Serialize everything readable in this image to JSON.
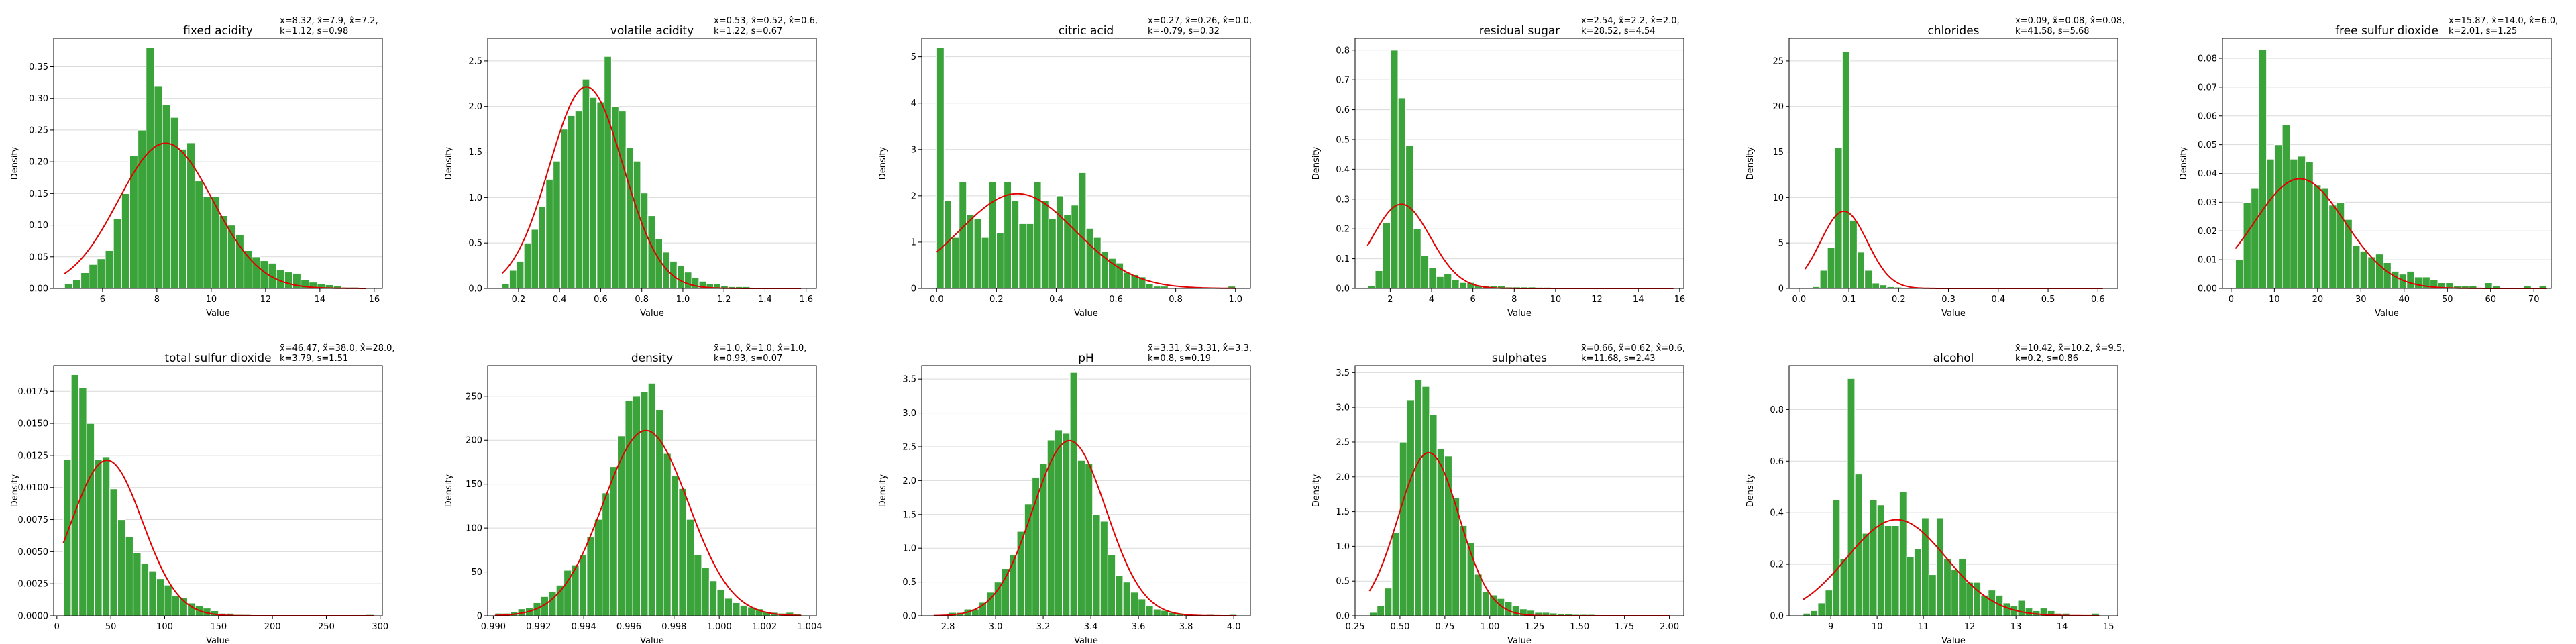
{
  "chart_data": [
    {
      "type": "bar",
      "title": "fixed acidity",
      "stats_line1": "x̄=8.32, x̃=7.9, x̂=7.2,",
      "stats_line2": "k=1.12, s=0.98",
      "xlabel": "Value",
      "ylabel": "Density",
      "xlim": [
        4.2,
        16.3
      ],
      "ylim": [
        0,
        0.395
      ],
      "xticks": [
        6,
        8,
        10,
        12,
        14,
        16
      ],
      "xtick_labels": [
        "6",
        "8",
        "10",
        "12",
        "14",
        "16"
      ],
      "yticks": [
        0,
        0.05,
        0.1,
        0.15,
        0.2,
        0.25,
        0.3,
        0.35
      ],
      "ytick_labels": [
        "0.00",
        "0.05",
        "0.10",
        "0.15",
        "0.20",
        "0.25",
        "0.30",
        "0.35"
      ],
      "bins": {
        "start": 4.6,
        "width": 0.3
      },
      "values": [
        0.008,
        0.014,
        0.025,
        0.038,
        0.047,
        0.06,
        0.11,
        0.15,
        0.21,
        0.25,
        0.38,
        0.32,
        0.29,
        0.27,
        0.22,
        0.23,
        0.17,
        0.145,
        0.145,
        0.115,
        0.1,
        0.085,
        0.06,
        0.05,
        0.044,
        0.04,
        0.03,
        0.026,
        0.024,
        0.014,
        0.01,
        0.008,
        0.006,
        0.004,
        0.002,
        0.002,
        0.001
      ],
      "fit": {
        "mean": 8.32,
        "sd": 1.74
      }
    },
    {
      "type": "bar",
      "title": "volatile acidity",
      "stats_line1": "x̄=0.53, x̃=0.52, x̂=0.6,",
      "stats_line2": "k=1.22, s=0.67",
      "xlabel": "Value",
      "ylabel": "Density",
      "xlim": [
        0.05,
        1.65
      ],
      "ylim": [
        0,
        2.75
      ],
      "xticks": [
        0.2,
        0.4,
        0.6,
        0.8,
        1.0,
        1.2,
        1.4,
        1.6
      ],
      "xtick_labels": [
        "0.2",
        "0.4",
        "0.6",
        "0.8",
        "1.0",
        "1.2",
        "1.4",
        "1.6"
      ],
      "yticks": [
        0,
        0.5,
        1.0,
        1.5,
        2.0,
        2.5
      ],
      "ytick_labels": [
        "0.0",
        "0.5",
        "1.0",
        "1.5",
        "2.0",
        "2.5"
      ],
      "bins": {
        "start": 0.12,
        "width": 0.0355
      },
      "values": [
        0.05,
        0.2,
        0.3,
        0.5,
        0.65,
        0.9,
        1.2,
        1.4,
        1.75,
        1.9,
        1.95,
        2.3,
        2.1,
        2.05,
        2.55,
        2.0,
        1.95,
        1.55,
        1.4,
        1.05,
        0.8,
        0.55,
        0.4,
        0.3,
        0.25,
        0.18,
        0.12,
        0.08,
        0.05,
        0.05,
        0.03,
        0.02,
        0.02,
        0.02,
        0.01,
        0.0,
        0.0,
        0.01,
        0.0,
        0.0,
        0.01
      ],
      "fit": {
        "mean": 0.53,
        "sd": 0.18
      }
    },
    {
      "type": "bar",
      "title": "citric acid",
      "stats_line1": "x̄=0.27, x̃=0.26, x̂=0.0,",
      "stats_line2": "k=-0.79, s=0.32",
      "xlabel": "Value",
      "ylabel": "Density",
      "xlim": [
        -0.05,
        1.05
      ],
      "ylim": [
        0,
        5.4
      ],
      "xticks": [
        0,
        0.2,
        0.4,
        0.6,
        0.8,
        1.0
      ],
      "xtick_labels": [
        "0.0",
        "0.2",
        "0.4",
        "0.6",
        "0.8",
        "1.0"
      ],
      "yticks": [
        0,
        1,
        2,
        3,
        4,
        5
      ],
      "ytick_labels": [
        "0",
        "1",
        "2",
        "3",
        "4",
        "5"
      ],
      "bins": {
        "start": 0.0,
        "width": 0.025
      },
      "values": [
        5.2,
        1.9,
        1.1,
        2.3,
        1.6,
        1.5,
        1.1,
        2.3,
        1.2,
        2.3,
        1.9,
        1.4,
        1.4,
        2.3,
        1.9,
        1.5,
        2.0,
        1.6,
        1.8,
        2.5,
        1.3,
        1.1,
        0.8,
        0.65,
        0.55,
        0.35,
        0.3,
        0.25,
        0.1,
        0.05,
        0.05,
        0.02,
        0.01,
        0.01,
        0.0,
        0.0,
        0.0,
        0.0,
        0.0,
        0.05
      ],
      "fit": {
        "mean": 0.27,
        "sd": 0.195
      }
    },
    {
      "type": "bar",
      "title": "residual sugar",
      "stats_line1": "x̄=2.54, x̃=2.2, x̂=2.0,",
      "stats_line2": "k=28.52, s=4.54",
      "xlabel": "Value",
      "ylabel": "Density",
      "xlim": [
        0.3,
        16.2
      ],
      "ylim": [
        0,
        0.84
      ],
      "xticks": [
        2,
        4,
        6,
        8,
        10,
        12,
        14,
        16
      ],
      "xtick_labels": [
        "2",
        "4",
        "6",
        "8",
        "10",
        "12",
        "14",
        "16"
      ],
      "yticks": [
        0,
        0.1,
        0.2,
        0.3,
        0.4,
        0.5,
        0.6,
        0.7,
        0.8
      ],
      "ytick_labels": [
        "0.0",
        "0.1",
        "0.2",
        "0.3",
        "0.4",
        "0.5",
        "0.6",
        "0.7",
        "0.8"
      ],
      "bins": {
        "start": 0.9,
        "width": 0.37
      },
      "values": [
        0.01,
        0.06,
        0.22,
        0.8,
        0.64,
        0.48,
        0.2,
        0.11,
        0.07,
        0.04,
        0.05,
        0.03,
        0.02,
        0.02,
        0.01,
        0.01,
        0.01,
        0.01,
        0.005,
        0.005,
        0.005,
        0.005,
        0.004,
        0.004,
        0.003,
        0.003,
        0.003,
        0.002,
        0.002,
        0.002,
        0.002,
        0.002,
        0.002,
        0.001,
        0.001,
        0.001,
        0.001,
        0.001,
        0.001,
        0.001
      ],
      "fit": {
        "mean": 2.54,
        "sd": 1.41
      }
    },
    {
      "type": "bar",
      "title": "chlorides",
      "stats_line1": "x̄=0.09, x̃=0.08, x̂=0.08,",
      "stats_line2": "k=41.58, s=5.68",
      "xlabel": "Value",
      "ylabel": "Density",
      "xlim": [
        -0.02,
        0.64
      ],
      "ylim": [
        0,
        27.5
      ],
      "xticks": [
        0,
        0.1,
        0.2,
        0.3,
        0.4,
        0.5,
        0.6
      ],
      "xtick_labels": [
        "0.0",
        "0.1",
        "0.2",
        "0.3",
        "0.4",
        "0.5",
        "0.6"
      ],
      "yticks": [
        0,
        5,
        10,
        15,
        20,
        25
      ],
      "ytick_labels": [
        "0",
        "5",
        "10",
        "15",
        "20",
        "25"
      ],
      "bins": {
        "start": 0.012,
        "width": 0.01495
      },
      "values": [
        0.05,
        0.2,
        2.0,
        4.5,
        15.5,
        26.0,
        7.5,
        4.0,
        2.0,
        0.6,
        0.4,
        0.2,
        0.15,
        0.1,
        0.1,
        0.05,
        0.05,
        0.05,
        0.05,
        0.0,
        0.0,
        0.05,
        0.0,
        0.1,
        0.0,
        0.05,
        0.05,
        0.1,
        0.0,
        0.0,
        0.0,
        0.05,
        0.0,
        0.0,
        0.0,
        0.0,
        0.0,
        0.05,
        0.0,
        0.05
      ],
      "fit": {
        "mean": 0.09,
        "sd": 0.047
      }
    },
    {
      "type": "bar",
      "title": "free sulfur dioxide",
      "stats_line1": "x̄=15.87, x̃=14.0, x̂=6.0,",
      "stats_line2": "k=2.01, s=1.25",
      "xlabel": "Value",
      "ylabel": "Density",
      "xlim": [
        -2,
        74
      ],
      "ylim": [
        0,
        0.087
      ],
      "xticks": [
        0,
        10,
        20,
        30,
        40,
        50,
        60,
        70
      ],
      "xtick_labels": [
        "0",
        "10",
        "20",
        "30",
        "40",
        "50",
        "60",
        "70"
      ],
      "yticks": [
        0,
        0.01,
        0.02,
        0.03,
        0.04,
        0.05,
        0.06,
        0.07,
        0.08
      ],
      "ytick_labels": [
        "0.00",
        "0.01",
        "0.02",
        "0.03",
        "0.04",
        "0.05",
        "0.06",
        "0.07",
        "0.08"
      ],
      "bins": {
        "start": 1.0,
        "width": 1.8
      },
      "values": [
        0.01,
        0.03,
        0.035,
        0.083,
        0.045,
        0.05,
        0.057,
        0.045,
        0.046,
        0.044,
        0.036,
        0.035,
        0.029,
        0.03,
        0.024,
        0.015,
        0.013,
        0.011,
        0.012,
        0.009,
        0.006,
        0.005,
        0.006,
        0.004,
        0.004,
        0.003,
        0.002,
        0.002,
        0.001,
        0.001,
        0.001,
        0.0,
        0.002,
        0.001,
        0.0,
        0.0,
        0.0,
        0.001,
        0.0,
        0.001
      ],
      "fit": {
        "mean": 15.87,
        "sd": 10.46
      }
    },
    {
      "type": "bar",
      "title": "total sulfur dioxide",
      "stats_line1": "x̄=46.47, x̃=38.0, x̂=28.0,",
      "stats_line2": "k=3.79, s=1.51",
      "xlabel": "Value",
      "ylabel": "Density",
      "xlim": [
        -3,
        302
      ],
      "ylim": [
        0,
        0.0195
      ],
      "xticks": [
        0,
        50,
        100,
        150,
        200,
        250,
        300
      ],
      "xtick_labels": [
        "0",
        "50",
        "100",
        "150",
        "200",
        "250",
        "300"
      ],
      "yticks": [
        0,
        0.0025,
        0.005,
        0.0075,
        0.01,
        0.0125,
        0.015,
        0.0175
      ],
      "ytick_labels": [
        "0.0000",
        "0.0025",
        "0.0050",
        "0.0075",
        "0.0100",
        "0.0125",
        "0.0150",
        "0.0175"
      ],
      "bins": {
        "start": 6.0,
        "width": 7.2
      },
      "values": [
        0.0122,
        0.0188,
        0.0178,
        0.015,
        0.0122,
        0.0124,
        0.0099,
        0.0075,
        0.0062,
        0.0049,
        0.0041,
        0.0035,
        0.0029,
        0.0024,
        0.0016,
        0.0014,
        0.001,
        0.0008,
        0.0006,
        0.0004,
        0.0002,
        0.0002,
        0.0001,
        0.0001,
        0.0,
        0.0,
        0.0,
        0.0,
        0.0,
        0.0,
        0.0,
        0.0,
        0.0,
        0.0,
        0.0,
        0.0,
        0.0,
        0.0,
        0.0,
        0.0001
      ],
      "fit": {
        "mean": 46.47,
        "sd": 32.9
      }
    },
    {
      "type": "bar",
      "title": "density",
      "stats_line1": "x̄=1.0, x̃=1.0, x̂=1.0,",
      "stats_line2": "k=0.93, s=0.07",
      "xlabel": "Value",
      "ylabel": "Density",
      "xlim": [
        0.98975,
        1.0043
      ],
      "ylim": [
        0,
        285
      ],
      "xticks": [
        0.99,
        0.992,
        0.994,
        0.996,
        0.998,
        1.0,
        1.002,
        1.004
      ],
      "xtick_labels": [
        "0.990",
        "0.992",
        "0.994",
        "0.996",
        "0.998",
        "1.000",
        "1.002",
        "1.004"
      ],
      "yticks": [
        0,
        50,
        100,
        150,
        200,
        250
      ],
      "ytick_labels": [
        "0",
        "50",
        "100",
        "150",
        "200",
        "250"
      ],
      "bins": {
        "start": 0.99007,
        "width": 0.000339
      },
      "values": [
        3,
        3,
        5,
        8,
        9,
        15,
        22,
        28,
        35,
        52,
        58,
        70,
        90,
        110,
        140,
        170,
        205,
        245,
        250,
        255,
        265,
        235,
        185,
        160,
        145,
        110,
        70,
        55,
        40,
        30,
        20,
        15,
        12,
        10,
        8,
        5,
        4,
        3,
        4,
        2
      ],
      "fit": {
        "mean": 0.99675,
        "sd": 0.00189
      }
    },
    {
      "type": "bar",
      "title": "pH",
      "stats_line1": "x̄=3.31, x̃=3.31, x̂=3.3,",
      "stats_line2": "k=0.8, s=0.19",
      "xlabel": "Value",
      "ylabel": "Density",
      "xlim": [
        2.69,
        4.07
      ],
      "ylim": [
        0,
        3.7
      ],
      "xticks": [
        2.8,
        3.0,
        3.2,
        3.4,
        3.6,
        3.8,
        4.0
      ],
      "xtick_labels": [
        "2.8",
        "3.0",
        "3.2",
        "3.4",
        "3.6",
        "3.8",
        "4.0"
      ],
      "yticks": [
        0,
        0.5,
        1.0,
        1.5,
        2.0,
        2.5,
        3.0,
        3.5
      ],
      "ytick_labels": [
        "0.0",
        "0.5",
        "1.0",
        "1.5",
        "2.0",
        "2.5",
        "3.0",
        "3.5"
      ],
      "bins": {
        "start": 2.74,
        "width": 0.0318
      },
      "values": [
        0.02,
        0.0,
        0.05,
        0.05,
        0.1,
        0.1,
        0.2,
        0.35,
        0.5,
        0.7,
        0.9,
        1.25,
        1.65,
        2.05,
        2.25,
        2.6,
        2.75,
        2.7,
        3.6,
        2.3,
        2.25,
        1.5,
        1.4,
        0.9,
        0.6,
        0.5,
        0.35,
        0.25,
        0.15,
        0.1,
        0.08,
        0.05,
        0.04,
        0.02,
        0.02,
        0.0,
        0.02,
        0.0,
        0.0,
        0.02
      ],
      "fit": {
        "mean": 3.31,
        "sd": 0.154
      }
    },
    {
      "type": "bar",
      "title": "sulphates",
      "stats_line1": "x̄=0.66, x̃=0.62, x̂=0.6,",
      "stats_line2": "k=11.68, s=2.43",
      "xlabel": "Value",
      "ylabel": "Density",
      "xlim": [
        0.25,
        2.08
      ],
      "ylim": [
        0,
        3.6
      ],
      "xticks": [
        0.25,
        0.5,
        0.75,
        1.0,
        1.25,
        1.5,
        1.75,
        2.0
      ],
      "xtick_labels": [
        "0.25",
        "0.50",
        "0.75",
        "1.00",
        "1.25",
        "1.50",
        "1.75",
        "2.00"
      ],
      "yticks": [
        0,
        0.5,
        1.0,
        1.5,
        2.0,
        2.5,
        3.0,
        3.5
      ],
      "ytick_labels": [
        "0.0",
        "0.5",
        "1.0",
        "1.5",
        "2.0",
        "2.5",
        "3.0",
        "3.5"
      ],
      "bins": {
        "start": 0.33,
        "width": 0.0418
      },
      "values": [
        0.05,
        0.15,
        0.4,
        1.2,
        2.5,
        3.1,
        3.4,
        3.3,
        2.9,
        2.4,
        2.3,
        1.7,
        1.3,
        1.05,
        0.6,
        0.35,
        0.3,
        0.25,
        0.2,
        0.15,
        0.1,
        0.08,
        0.05,
        0.05,
        0.04,
        0.03,
        0.03,
        0.02,
        0.02,
        0.02,
        0.01,
        0.01,
        0.01,
        0.01,
        0.01,
        0.0,
        0.0,
        0.01,
        0.0,
        0.01
      ],
      "fit": {
        "mean": 0.66,
        "sd": 0.17
      }
    },
    {
      "type": "bar",
      "title": "alcohol",
      "stats_line1": "x̄=10.42, x̃=10.2, x̂=9.5,",
      "stats_line2": "k=0.2, s=0.86",
      "xlabel": "Value",
      "ylabel": "Density",
      "xlim": [
        8.1,
        15.2
      ],
      "ylim": [
        0,
        0.97
      ],
      "xticks": [
        9,
        10,
        11,
        12,
        13,
        14,
        15
      ],
      "xtick_labels": [
        "9",
        "10",
        "11",
        "12",
        "13",
        "14",
        "15"
      ],
      "yticks": [
        0,
        0.2,
        0.4,
        0.6,
        0.8
      ],
      "ytick_labels": [
        "0.0",
        "0.2",
        "0.4",
        "0.6",
        "0.8"
      ],
      "bins": {
        "start": 8.4,
        "width": 0.16
      },
      "values": [
        0.01,
        0.02,
        0.05,
        0.1,
        0.45,
        0.22,
        0.92,
        0.55,
        0.32,
        0.45,
        0.43,
        0.35,
        0.35,
        0.48,
        0.23,
        0.26,
        0.38,
        0.16,
        0.38,
        0.22,
        0.18,
        0.22,
        0.13,
        0.13,
        0.08,
        0.1,
        0.08,
        0.05,
        0.04,
        0.06,
        0.03,
        0.02,
        0.03,
        0.02,
        0.01,
        0.01,
        0.0,
        0.0,
        0.0,
        0.01
      ],
      "fit": {
        "mean": 10.42,
        "sd": 1.07
      }
    }
  ]
}
